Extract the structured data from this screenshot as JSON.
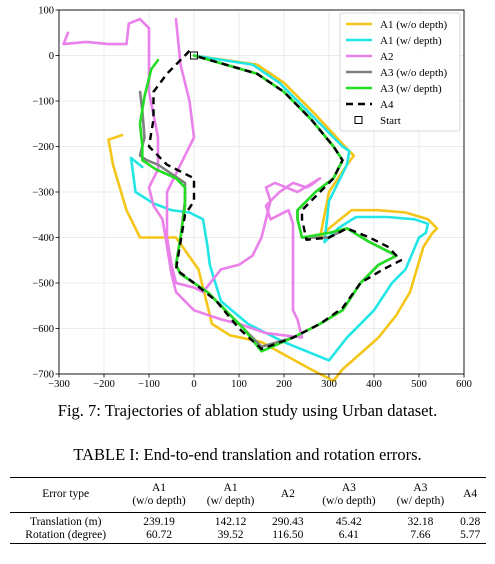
{
  "figure": {
    "caption": "Fig. 7: Trajectories of ablation study using Urban dataset.",
    "chart_data": {
      "type": "line",
      "xlim": [
        -300,
        600
      ],
      "ylim": [
        -700,
        100
      ],
      "x_ticks": [
        -300,
        -200,
        -100,
        0,
        100,
        200,
        300,
        400,
        500,
        600
      ],
      "y_ticks": [
        100,
        0,
        -100,
        -200,
        -300,
        -400,
        -500,
        -600,
        -700
      ],
      "grid": true,
      "legend_position": "top-right",
      "series": [
        {
          "name": "A1 (w/o depth)",
          "color": "#f5c518",
          "dash": "solid",
          "points": [
            [
              -160,
              -175
            ],
            [
              -190,
              -185
            ],
            [
              -180,
              -240
            ],
            [
              -150,
              -340
            ],
            [
              -120,
              -400
            ],
            [
              -80,
              -400
            ],
            [
              -40,
              -400
            ],
            [
              10,
              -470
            ],
            [
              40,
              -590
            ],
            [
              80,
              -615
            ],
            [
              150,
              -630
            ],
            [
              260,
              -690
            ],
            [
              310,
              -715
            ],
            [
              330,
              -690
            ],
            [
              410,
              -620
            ],
            [
              450,
              -570
            ],
            [
              480,
              -520
            ],
            [
              510,
              -420
            ],
            [
              530,
              -390
            ],
            [
              540,
              -380
            ],
            [
              520,
              -360
            ],
            [
              470,
              -345
            ],
            [
              410,
              -340
            ],
            [
              350,
              -340
            ],
            [
              300,
              -380
            ],
            [
              280,
              -400
            ],
            [
              300,
              -300
            ],
            [
              340,
              -240
            ],
            [
              355,
              -220
            ],
            [
              340,
              -205
            ],
            [
              270,
              -130
            ],
            [
              200,
              -60
            ],
            [
              140,
              -20
            ],
            [
              0,
              0
            ]
          ]
        },
        {
          "name": "A1 (w/ depth)",
          "color": "#22e6e6",
          "dash": "solid",
          "points": [
            [
              -115,
              -245
            ],
            [
              -140,
              -225
            ],
            [
              -130,
              -300
            ],
            [
              -90,
              -325
            ],
            [
              -50,
              -340
            ],
            [
              -10,
              -345
            ],
            [
              20,
              -360
            ],
            [
              30,
              -420
            ],
            [
              35,
              -460
            ],
            [
              60,
              -540
            ],
            [
              120,
              -590
            ],
            [
              200,
              -630
            ],
            [
              300,
              -670
            ],
            [
              340,
              -620
            ],
            [
              400,
              -560
            ],
            [
              440,
              -500
            ],
            [
              470,
              -470
            ],
            [
              500,
              -400
            ],
            [
              515,
              -390
            ],
            [
              520,
              -370
            ],
            [
              490,
              -360
            ],
            [
              430,
              -355
            ],
            [
              360,
              -355
            ],
            [
              320,
              -380
            ],
            [
              290,
              -410
            ],
            [
              300,
              -320
            ],
            [
              340,
              -240
            ],
            [
              345,
              -210
            ],
            [
              330,
              -200
            ],
            [
              260,
              -130
            ],
            [
              190,
              -60
            ],
            [
              130,
              -20
            ],
            [
              0,
              0
            ]
          ]
        },
        {
          "name": "A2",
          "color": "#ea80ea",
          "dash": "solid",
          "points": [
            [
              -280,
              50
            ],
            [
              -290,
              25
            ],
            [
              -240,
              30
            ],
            [
              -190,
              25
            ],
            [
              -150,
              25
            ],
            [
              -145,
              70
            ],
            [
              -120,
              80
            ],
            [
              -100,
              60
            ],
            [
              -100,
              0
            ],
            [
              -100,
              -80
            ],
            [
              -80,
              -180
            ],
            [
              -80,
              -250
            ],
            [
              -100,
              -290
            ],
            [
              -90,
              -330
            ],
            [
              -70,
              -360
            ],
            [
              -60,
              -420
            ],
            [
              -50,
              -480
            ],
            [
              -40,
              -520
            ],
            [
              0,
              -560
            ],
            [
              60,
              -580
            ],
            [
              100,
              -590
            ],
            [
              160,
              -610
            ],
            [
              240,
              -620
            ],
            [
              230,
              -580
            ],
            [
              220,
              -560
            ],
            [
              220,
              -480
            ],
            [
              220,
              -400
            ],
            [
              220,
              -370
            ],
            [
              210,
              -340
            ],
            [
              170,
              -360
            ],
            [
              160,
              -330
            ],
            [
              190,
              -300
            ],
            [
              220,
              -280
            ],
            [
              250,
              -290
            ],
            [
              260,
              -285
            ],
            [
              280,
              -270
            ],
            [
              230,
              -300
            ],
            [
              180,
              -280
            ],
            [
              160,
              -290
            ],
            [
              170,
              -320
            ],
            [
              160,
              -360
            ],
            [
              150,
              -400
            ],
            [
              130,
              -440
            ],
            [
              100,
              -460
            ],
            [
              60,
              -470
            ],
            [
              20,
              -520
            ],
            [
              0,
              -510
            ],
            [
              -40,
              -500
            ],
            [
              -50,
              -460
            ],
            [
              -60,
              -400
            ],
            [
              -60,
              -300
            ],
            [
              -20,
              -220
            ],
            [
              0,
              -180
            ],
            [
              -10,
              -100
            ],
            [
              -30,
              -20
            ],
            [
              -40,
              80
            ]
          ]
        },
        {
          "name": "A3 (w/o depth)",
          "color": "#808080",
          "dash": "solid",
          "points": [
            [
              -120,
              -80
            ],
            [
              -115,
              -120
            ],
            [
              -110,
              -180
            ],
            [
              -120,
              -220
            ],
            [
              -105,
              -230
            ],
            [
              -80,
              -240
            ],
            [
              -50,
              -260
            ],
            [
              -20,
              -280
            ],
            [
              -20,
              -320
            ],
            [
              -30,
              -400
            ],
            [
              -40,
              -460
            ],
            [
              -30,
              -480
            ],
            [
              30,
              -520
            ],
            [
              70,
              -560
            ],
            [
              110,
              -600
            ],
            [
              150,
              -640
            ],
            [
              220,
              -620
            ],
            [
              280,
              -590
            ],
            [
              330,
              -560
            ],
            [
              370,
              -500
            ],
            [
              410,
              -460
            ],
            [
              450,
              -440
            ],
            [
              430,
              -430
            ],
            [
              390,
              -410
            ],
            [
              340,
              -380
            ],
            [
              300,
              -400
            ],
            [
              240,
              -400
            ],
            [
              230,
              -360
            ],
            [
              230,
              -340
            ],
            [
              270,
              -300
            ],
            [
              310,
              -270
            ],
            [
              330,
              -230
            ],
            [
              310,
              -200
            ],
            [
              260,
              -140
            ],
            [
              200,
              -80
            ],
            [
              140,
              -40
            ],
            [
              0,
              0
            ]
          ]
        },
        {
          "name": "A3 (w/ depth)",
          "color": "#22dd22",
          "dash": "solid",
          "points": [
            [
              -80,
              -10
            ],
            [
              -95,
              -30
            ],
            [
              -110,
              -90
            ],
            [
              -120,
              -150
            ],
            [
              -115,
              -200
            ],
            [
              -115,
              -230
            ],
            [
              -85,
              -250
            ],
            [
              -40,
              -270
            ],
            [
              -20,
              -290
            ],
            [
              -20,
              -330
            ],
            [
              -30,
              -400
            ],
            [
              -40,
              -460
            ],
            [
              -30,
              -480
            ],
            [
              30,
              -520
            ],
            [
              70,
              -560
            ],
            [
              110,
              -600
            ],
            [
              150,
              -650
            ],
            [
              220,
              -620
            ],
            [
              280,
              -590
            ],
            [
              330,
              -560
            ],
            [
              370,
              -500
            ],
            [
              410,
              -460
            ],
            [
              450,
              -440
            ],
            [
              430,
              -430
            ],
            [
              390,
              -410
            ],
            [
              340,
              -380
            ],
            [
              300,
              -390
            ],
            [
              240,
              -400
            ],
            [
              230,
              -360
            ],
            [
              230,
              -340
            ],
            [
              270,
              -300
            ],
            [
              310,
              -270
            ],
            [
              330,
              -230
            ],
            [
              310,
              -200
            ],
            [
              260,
              -140
            ],
            [
              200,
              -80
            ],
            [
              140,
              -40
            ],
            [
              0,
              0
            ]
          ]
        },
        {
          "name": "A4",
          "color": "#000000",
          "dash": "dashed",
          "points": [
            [
              -10,
              10
            ],
            [
              -40,
              -20
            ],
            [
              -60,
              -40
            ],
            [
              -90,
              -80
            ],
            [
              -90,
              -140
            ],
            [
              -100,
              -200
            ],
            [
              -60,
              -240
            ],
            [
              0,
              -270
            ],
            [
              0,
              -320
            ],
            [
              -20,
              -350
            ],
            [
              -30,
              -410
            ],
            [
              -40,
              -470
            ],
            [
              0,
              -500
            ],
            [
              50,
              -540
            ],
            [
              100,
              -600
            ],
            [
              150,
              -645
            ],
            [
              220,
              -620
            ],
            [
              280,
              -590
            ],
            [
              330,
              -555
            ],
            [
              370,
              -500
            ],
            [
              420,
              -470
            ],
            [
              460,
              -450
            ],
            [
              430,
              -420
            ],
            [
              390,
              -400
            ],
            [
              340,
              -380
            ],
            [
              300,
              -400
            ],
            [
              250,
              -405
            ],
            [
              240,
              -360
            ],
            [
              240,
              -340
            ],
            [
              280,
              -300
            ],
            [
              310,
              -270
            ],
            [
              330,
              -230
            ],
            [
              310,
              -200
            ],
            [
              260,
              -140
            ],
            [
              200,
              -80
            ],
            [
              140,
              -40
            ],
            [
              0,
              0
            ]
          ]
        }
      ],
      "markers": [
        {
          "name": "Start",
          "x": 0,
          "y": 0,
          "shape": "square"
        }
      ]
    }
  },
  "table": {
    "caption": "TABLE I: End-to-end translation and rotation errors.",
    "headers": [
      {
        "line1": "Error type",
        "line2": ""
      },
      {
        "line1": "A1",
        "line2": "(w/o depth)"
      },
      {
        "line1": "A1",
        "line2": "(w/ depth)"
      },
      {
        "line1": "A2",
        "line2": ""
      },
      {
        "line1": "A3",
        "line2": "(w/o depth)"
      },
      {
        "line1": "A3",
        "line2": "(w/ depth)"
      },
      {
        "line1": "A4",
        "line2": ""
      }
    ],
    "rows": [
      [
        "Translation (m)",
        "239.19",
        "142.12",
        "290.43",
        "45.42",
        "32.18",
        "0.28"
      ],
      [
        "Rotation (degree)",
        "60.72",
        "39.52",
        "116.50",
        "6.41",
        "7.66",
        "5.77"
      ]
    ]
  }
}
